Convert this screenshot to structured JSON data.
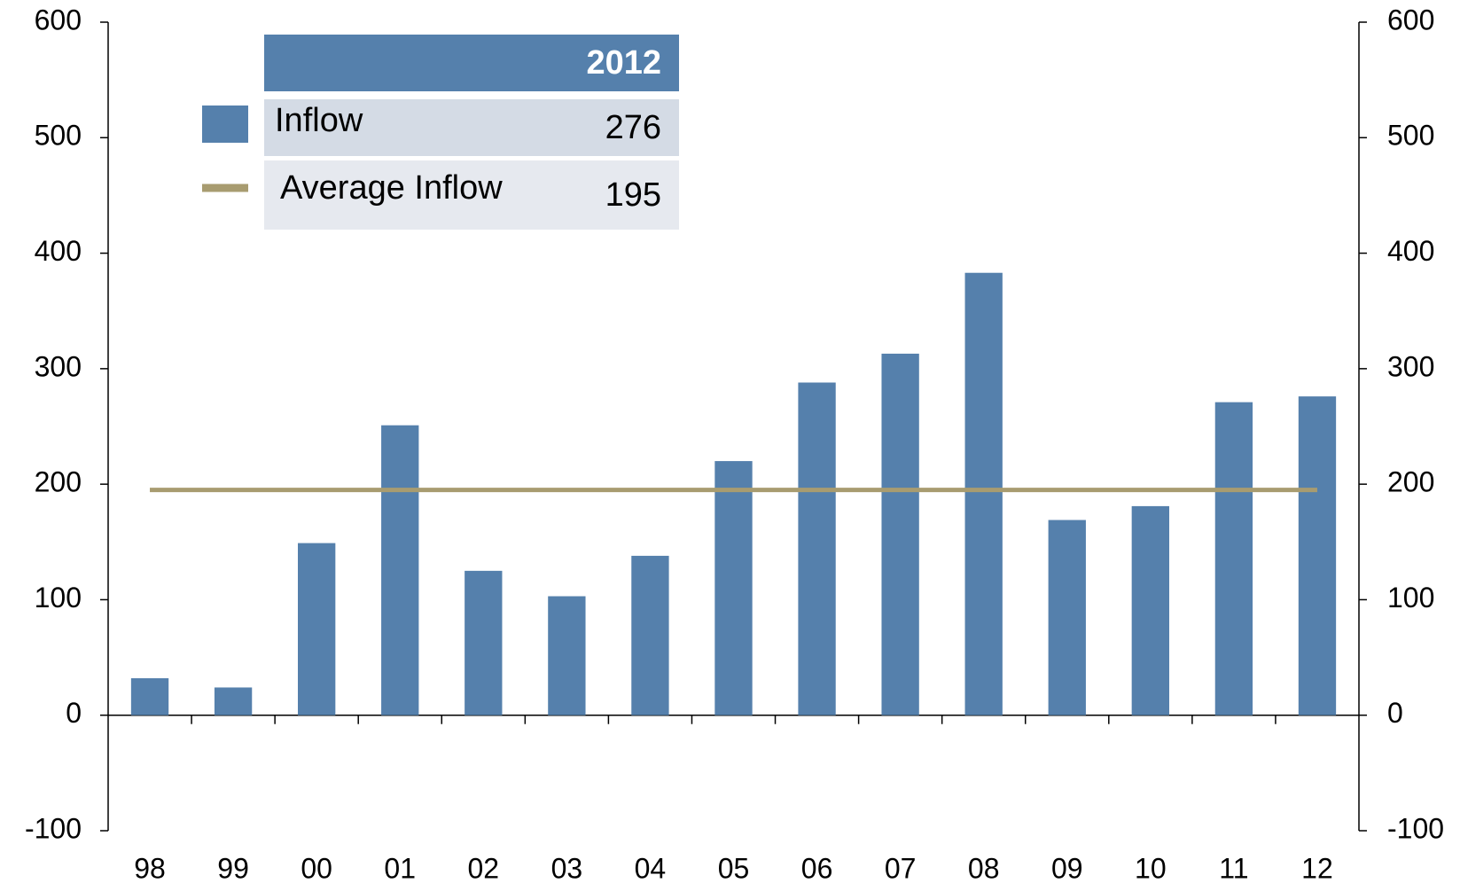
{
  "chart_data": {
    "type": "bar",
    "categories": [
      "98",
      "99",
      "00",
      "01",
      "02",
      "03",
      "04",
      "05",
      "06",
      "07",
      "08",
      "09",
      "10",
      "11",
      "12"
    ],
    "series": [
      {
        "name": "Inflow",
        "color": "#5580ac",
        "values": [
          32,
          24,
          149,
          251,
          125,
          103,
          138,
          220,
          288,
          313,
          383,
          169,
          181,
          271,
          276
        ]
      },
      {
        "name": "Average Inflow",
        "color": "#a89c70",
        "type": "line",
        "values": [
          195,
          195,
          195,
          195,
          195,
          195,
          195,
          195,
          195,
          195,
          195,
          195,
          195,
          195,
          195
        ]
      }
    ],
    "ylim": [
      -100,
      600
    ],
    "yticks": [
      -100,
      0,
      100,
      200,
      300,
      400,
      500,
      600
    ],
    "y2lim": [
      -100,
      600
    ],
    "y2ticks": [
      -100,
      0,
      100,
      200,
      300,
      400,
      500,
      600
    ],
    "legend_table": {
      "header": "2012",
      "values": [
        276,
        195
      ],
      "header_color": "#5580ac",
      "row_colors": [
        "#d4dbe5",
        "#e6e9ef"
      ]
    }
  }
}
